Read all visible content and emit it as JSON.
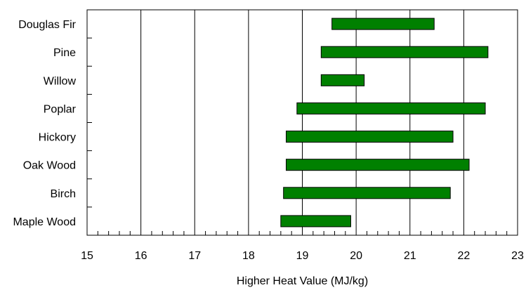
{
  "chart_data": {
    "type": "bar",
    "orientation": "horizontal-range",
    "categories": [
      "Douglas Fir",
      "Pine",
      "Willow",
      "Poplar",
      "Hickory",
      "Oak Wood",
      "Birch",
      "Maple Wood"
    ],
    "ranges": [
      [
        19.55,
        21.45
      ],
      [
        19.35,
        22.45
      ],
      [
        19.35,
        20.15
      ],
      [
        18.9,
        22.4
      ],
      [
        18.7,
        21.8
      ],
      [
        18.7,
        22.1
      ],
      [
        18.65,
        21.75
      ],
      [
        18.6,
        19.9
      ]
    ],
    "xlabel": "Higher Heat Value (MJ/kg)",
    "ylabel": "",
    "title": "",
    "xlim": [
      15,
      23
    ],
    "xticks": [
      "15",
      "16",
      "17",
      "18",
      "19",
      "20",
      "21",
      "22",
      "23"
    ],
    "grid": "vertical",
    "bar_color": "#008000",
    "bar_border_color": "#000000",
    "grid_color": "#000000"
  }
}
